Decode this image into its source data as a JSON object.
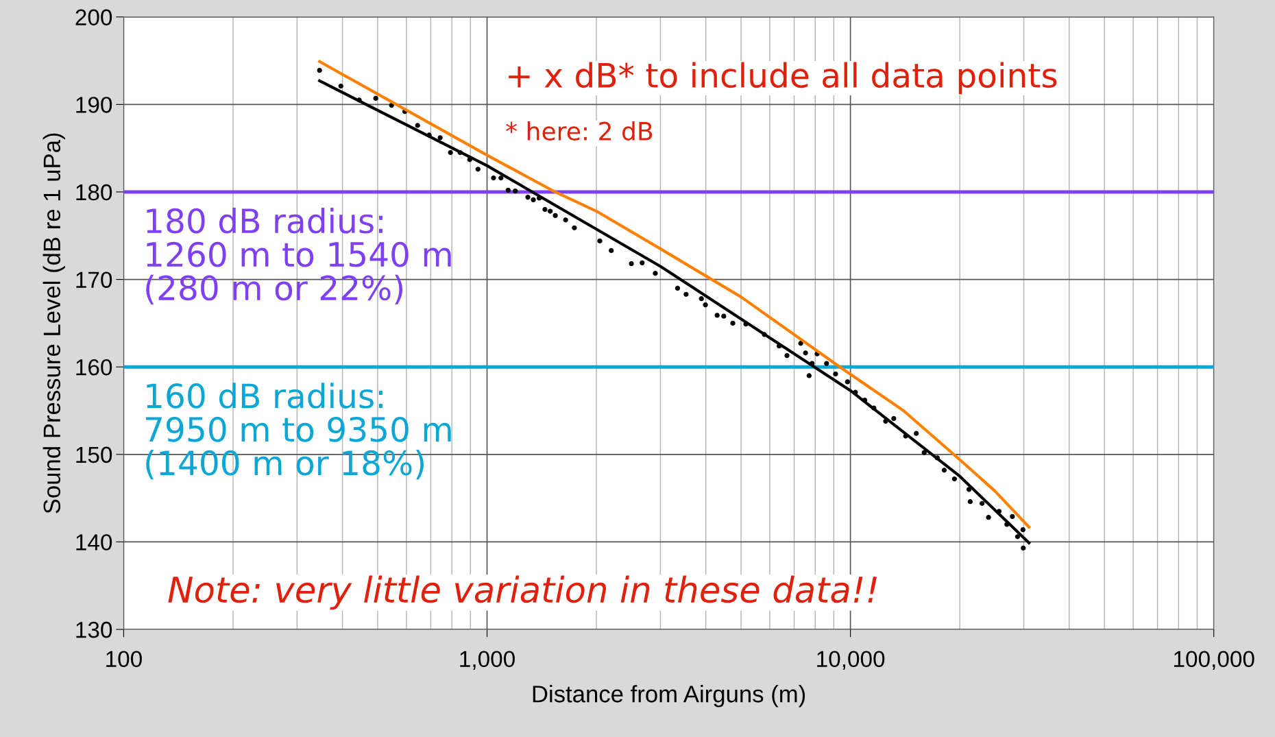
{
  "chart_data": {
    "type": "scatter",
    "xlabel": "Distance from Airguns (m)",
    "ylabel": "Sound Pressure Level (dB re 1 uPa)",
    "log": "x",
    "xlim": [
      100,
      100000
    ],
    "xticks": [
      {
        "value": 100,
        "label": "100"
      },
      {
        "value": 1000,
        "label": "1,000"
      },
      {
        "value": 10000,
        "label": "10,000"
      },
      {
        "value": 100000,
        "label": "100,000"
      }
    ],
    "ylim": [
      130,
      200
    ],
    "yticks": [
      130,
      140,
      150,
      160,
      170,
      180,
      190,
      200
    ],
    "grid": true,
    "marker": "circle",
    "series": [
      {
        "color": "#000000",
        "x": [
          346,
          396,
          445,
          494,
          546,
          594,
          644,
          693,
          743,
          793,
          843,
          896,
          944,
          1042,
          1092,
          1143,
          1196,
          1295,
          1341,
          1392,
          1443,
          1492,
          1541,
          1645,
          1739,
          2043,
          2197,
          2496,
          2672,
          2904,
          3345,
          3530,
          3889,
          3990,
          4298,
          4482,
          4747,
          5156,
          5798,
          6366,
          6689,
          7298,
          7523,
          7696,
          7843,
          8098,
          8597,
          9101,
          9816,
          10320,
          10950,
          11600,
          12500,
          13160,
          14190,
          15180,
          15960,
          17340,
          18120,
          19330,
          21200,
          21360,
          23030,
          23990,
          25650,
          26950,
          27900,
          28840,
          29840,
          29900
        ],
        "values": [
          193.9,
          192.1,
          190.5,
          190.7,
          189.9,
          189.2,
          187.6,
          186.5,
          186.2,
          184.5,
          184.5,
          183.7,
          182.6,
          181.6,
          181.6,
          180.2,
          180.1,
          179.4,
          179.1,
          179.3,
          178.0,
          177.8,
          177.3,
          176.8,
          175.9,
          174.4,
          173.3,
          171.8,
          171.9,
          170.7,
          169.0,
          168.3,
          167.8,
          167.1,
          165.9,
          165.8,
          165.0,
          164.9,
          163.7,
          162.4,
          161.3,
          162.7,
          161.6,
          159.0,
          160.4,
          161.5,
          160.4,
          159.2,
          158.3,
          157.1,
          156.2,
          155.3,
          153.8,
          154.1,
          152.1,
          152.4,
          150.2,
          149.6,
          148.2,
          147.2,
          146.0,
          144.6,
          144.4,
          142.8,
          143.5,
          142.0,
          142.9,
          140.6,
          141.4,
          139.3
        ]
      },
      {
        "type": "line",
        "color": "#000000",
        "marker": "none",
        "x": [
          346,
          1000,
          3000,
          10000,
          20000,
          31000
        ],
        "values": [
          192.7,
          183.0,
          171.5,
          157.3,
          147.5,
          139.9
        ]
      },
      {
        "type": "line",
        "color": "#ff8000",
        "marker": "none",
        "x": [
          346,
          1000,
          1540,
          2000,
          3000,
          5000,
          9350,
          14000,
          20000,
          25000,
          31000
        ],
        "values": [
          194.9,
          184.2,
          180.0,
          177.8,
          173.5,
          168.0,
          160.0,
          155.0,
          149.4,
          145.8,
          141.7
        ]
      }
    ],
    "ref_lines": [
      {
        "axis": "y",
        "value": 180,
        "color": "#7f3ff5",
        "label": "180 dB radius:\n1260 m to 1540 m\n(280 m or 22%)"
      },
      {
        "axis": "y",
        "value": 160,
        "color": "#0aa6d6",
        "label": "160 dB radius:\n7950 m to 9350 m\n(1400 m or 18%)"
      }
    ],
    "annotations": [
      "+ x dB* to include all data points",
      "* here: 2 dB",
      "Note: very little variation in these data!!"
    ]
  }
}
